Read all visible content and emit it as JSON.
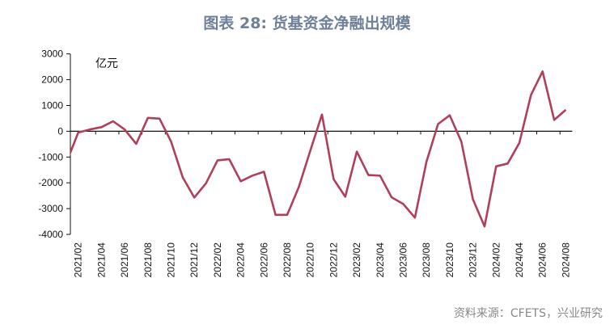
{
  "title": "图表 28: 货基资金净融出规模",
  "source": "资料来源：CFETS，兴业研究",
  "chart_data": {
    "type": "line",
    "title": "图表 28: 货基资金净融出规模",
    "unit_label": "亿元",
    "ylim": [
      -4000,
      3000
    ],
    "yticks": [
      3000,
      2000,
      1000,
      0,
      -1000,
      -2000,
      -3000,
      -4000
    ],
    "grid": false,
    "line_color": "#b0405a",
    "x": [
      "2021/01",
      "2021/02",
      "2021/03",
      "2021/04",
      "2021/05",
      "2021/06",
      "2021/07",
      "2021/08",
      "2021/09",
      "2021/10",
      "2021/11",
      "2021/12",
      "2022/01",
      "2022/02",
      "2022/03",
      "2022/04",
      "2022/05",
      "2022/06",
      "2022/07",
      "2022/08",
      "2022/09",
      "2022/10",
      "2022/11",
      "2022/12",
      "2023/01",
      "2023/02",
      "2023/03",
      "2023/04",
      "2023/05",
      "2023/06",
      "2023/07",
      "2023/08",
      "2023/09",
      "2023/10",
      "2023/11",
      "2023/12",
      "2024/01",
      "2024/02",
      "2024/03",
      "2024/04",
      "2024/05",
      "2024/06",
      "2024/07",
      "2024/08"
    ],
    "values": [
      -1190,
      -50,
      70,
      160,
      390,
      70,
      -490,
      520,
      490,
      -400,
      -1790,
      -2570,
      -2020,
      -1130,
      -1080,
      -1940,
      -1720,
      -1570,
      -3240,
      -3240,
      -2170,
      -740,
      650,
      -1860,
      -2540,
      -790,
      -1700,
      -1720,
      -2560,
      -2820,
      -3350,
      -1180,
      280,
      620,
      -400,
      -2640,
      -3690,
      -1360,
      -1250,
      -450,
      1410,
      2320,
      440,
      830
    ],
    "xtick_labels": [
      "2021/02",
      "2021/04",
      "2021/06",
      "2021/08",
      "2021/10",
      "2021/12",
      "2022/02",
      "2022/04",
      "2022/06",
      "2022/08",
      "2022/10",
      "2022/12",
      "2023/02",
      "2023/04",
      "2023/06",
      "2023/08",
      "2023/10",
      "2023/12",
      "2024/02",
      "2024/04",
      "2024/06",
      "2024/08"
    ]
  }
}
